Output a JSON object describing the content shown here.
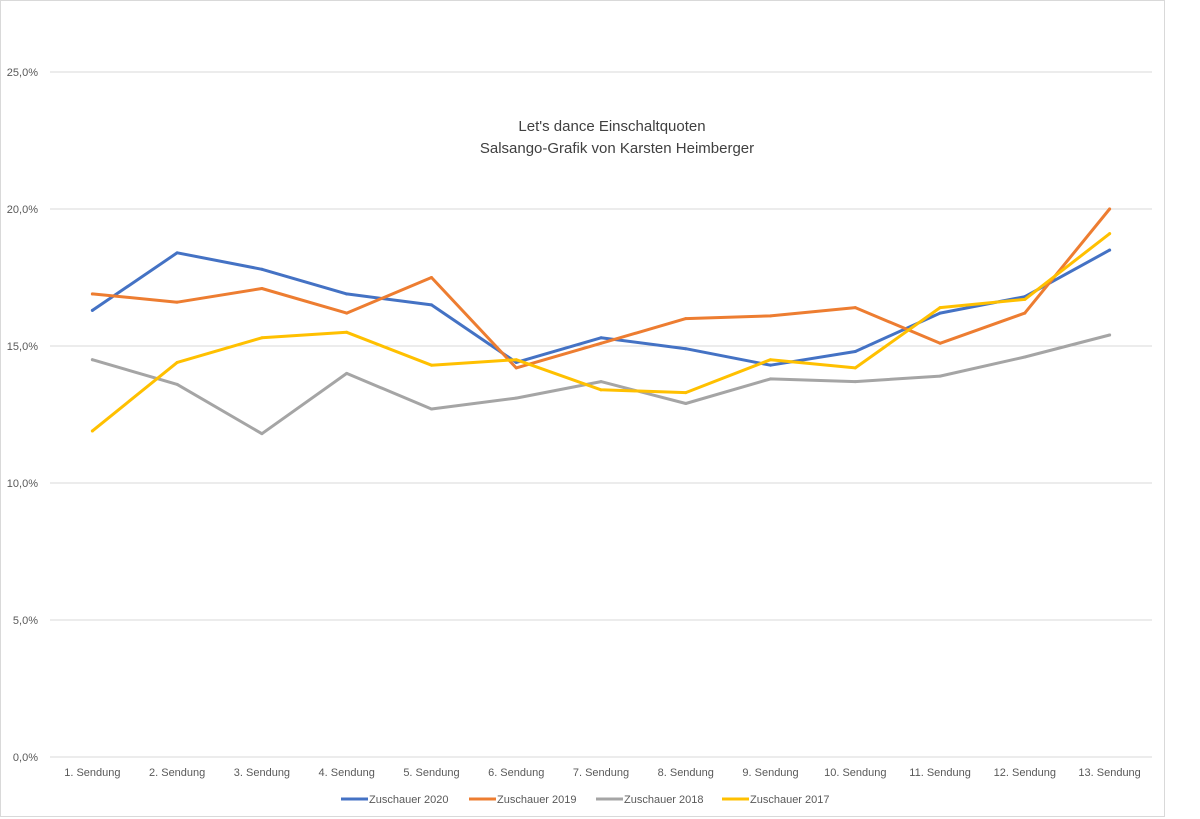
{
  "chart_data": {
    "type": "line",
    "title": "Let's dance Einschaltquoten",
    "subtitle": "Salsango-Grafik von Karsten Heimberger",
    "xlabel": "",
    "ylabel": "",
    "categories": [
      "1. Sendung",
      "2. Sendung",
      "3. Sendung",
      "4. Sendung",
      "5. Sendung",
      "6. Sendung",
      "7. Sendung",
      "8. Sendung",
      "9. Sendung",
      "10. Sendung",
      "11. Sendung",
      "12. Sendung",
      "13. Sendung"
    ],
    "ylim": [
      0,
      25
    ],
    "yticks": [
      "0,0%",
      "5,0%",
      "10,0%",
      "15,0%",
      "20,0%",
      "25,0%"
    ],
    "grid": true,
    "legend_position": "bottom",
    "series": [
      {
        "name": "Zuschauer 2020",
        "color": "#4472c4",
        "values": [
          16.3,
          18.4,
          17.8,
          16.9,
          16.5,
          14.4,
          15.3,
          14.9,
          14.3,
          14.8,
          16.2,
          16.8,
          18.5
        ]
      },
      {
        "name": "Zuschauer 2019",
        "color": "#ed7d31",
        "values": [
          16.9,
          16.6,
          17.1,
          16.2,
          17.5,
          14.2,
          15.1,
          16.0,
          16.1,
          16.4,
          15.1,
          16.2,
          20.0
        ]
      },
      {
        "name": "Zuschauer 2018",
        "color": "#a5a5a5",
        "values": [
          14.5,
          13.6,
          11.8,
          14.0,
          12.7,
          13.1,
          13.7,
          12.9,
          13.8,
          13.7,
          13.9,
          14.6,
          15.4
        ]
      },
      {
        "name": "Zuschauer 2017",
        "color": "#ffc000",
        "values": [
          11.9,
          14.4,
          15.3,
          15.5,
          14.3,
          14.5,
          13.4,
          13.3,
          14.5,
          14.2,
          16.4,
          16.7,
          19.1
        ]
      }
    ]
  }
}
